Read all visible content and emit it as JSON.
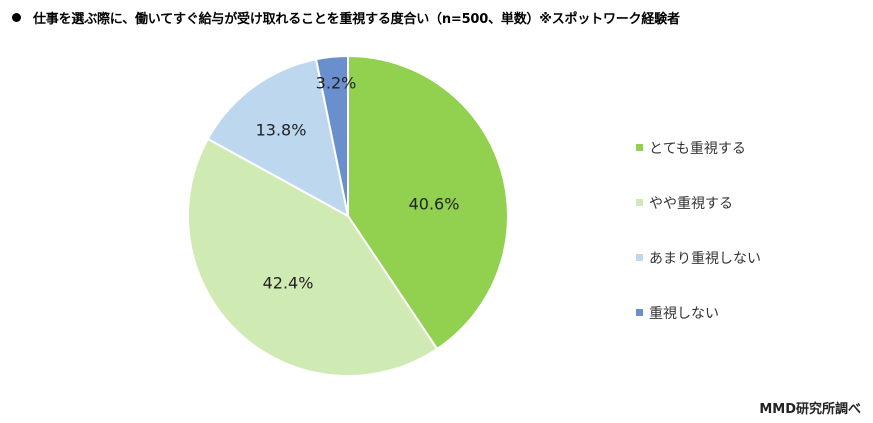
{
  "title": {
    "bullet": "●",
    "text": "仕事を選ぶ際に、働いてすぐ給与が受け取れることを重視する度合い（n=500、単数）※スポットワーク経験者"
  },
  "credit": "MMD研究所調べ",
  "chart_data": {
    "type": "pie",
    "title": "仕事を選ぶ際に、働いてすぐ給与が受け取れることを重視する度合い（n=500、単数）※スポットワーク経験者",
    "categories": [
      "とても重視する",
      "やや重視する",
      "あまり重視しない",
      "重視しない"
    ],
    "values": [
      40.6,
      42.4,
      13.8,
      3.2
    ],
    "labels": [
      "40.6%",
      "42.4%",
      "13.8%",
      "3.2%"
    ],
    "colors": [
      "#92d050",
      "#d0eab4",
      "#bdd7ee",
      "#6a8fcf"
    ],
    "start_angle": "12 o'clock",
    "direction": "clockwise",
    "legend_position": "right",
    "unit": "%",
    "n": 500
  },
  "legend": [
    {
      "label": "とても重視する",
      "color": "#92d050"
    },
    {
      "label": "やや重視する",
      "color": "#d0eab4"
    },
    {
      "label": "あまり重視しない",
      "color": "#bdd7ee"
    },
    {
      "label": "重視しない",
      "color": "#6a8fcf"
    }
  ]
}
